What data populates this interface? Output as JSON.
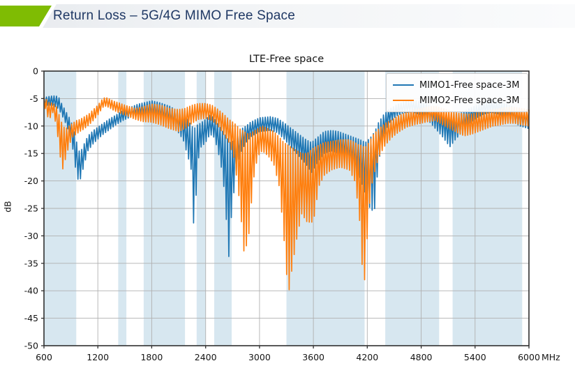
{
  "header": {
    "title": "Return Loss – 5G/4G MIMO Free Space",
    "accent_color": "#7fbc03",
    "title_color": "#1f3864"
  },
  "chart_data": {
    "type": "line",
    "title": "LTE-Free space",
    "ylabel": "dB",
    "x_unit": "MHz",
    "xlim": [
      600,
      6000
    ],
    "ylim": [
      -50,
      0
    ],
    "x_ticks": [
      600,
      1200,
      1800,
      2400,
      3000,
      3600,
      4200,
      4800,
      5400,
      6000
    ],
    "x_tick_labels": [
      "600",
      "1200",
      "1800",
      "2400",
      "3000",
      "3600",
      "4200",
      "4800",
      "5400",
      "6000 MHz"
    ],
    "y_ticks": [
      0,
      -5,
      -10,
      -15,
      -20,
      -25,
      -30,
      -35,
      -40,
      -45,
      -50
    ],
    "y_tick_labels": [
      "0",
      "-5",
      "-10",
      "-15",
      "-20",
      "-25",
      "-30",
      "-35",
      "-40",
      "-45",
      "-50"
    ],
    "grid": true,
    "legend_position": "upper right",
    "colors": {
      "band_fill": "#d7e7f0",
      "grid": "#b0b0b0",
      "spine": "#2f2f2f",
      "text": "#151515"
    },
    "shaded_bands_mhz": [
      [
        600,
        960
      ],
      [
        1427,
        1518
      ],
      [
        1710,
        2170
      ],
      [
        2300,
        2400
      ],
      [
        2496,
        2690
      ],
      [
        3300,
        4170
      ],
      [
        4400,
        5000
      ],
      [
        5150,
        5925
      ]
    ],
    "ripple_half_period_mhz": 14,
    "series": [
      {
        "name": "MIMO1-Free space-3M",
        "color": "#1f77b4",
        "envelope": [
          [
            600,
            -4.8,
            -6.2
          ],
          [
            700,
            -4.5,
            -6.2
          ],
          [
            760,
            -4.6,
            -6.8
          ],
          [
            800,
            -6,
            -8
          ],
          [
            850,
            -7.5,
            -9.8
          ],
          [
            900,
            -9,
            -12
          ],
          [
            935,
            -11,
            -15.5
          ],
          [
            965,
            -13,
            -19.5
          ],
          [
            1000,
            -15,
            -20
          ],
          [
            1040,
            -13.5,
            -17.5
          ],
          [
            1090,
            -11.8,
            -14.5
          ],
          [
            1150,
            -10.8,
            -13.2
          ],
          [
            1200,
            -10.2,
            -12.4
          ],
          [
            1260,
            -9.5,
            -11.5
          ],
          [
            1320,
            -8.8,
            -10.8
          ],
          [
            1400,
            -8,
            -9.8
          ],
          [
            1480,
            -7.2,
            -9
          ],
          [
            1560,
            -6.6,
            -8.4
          ],
          [
            1650,
            -6,
            -8
          ],
          [
            1800,
            -5.4,
            -8.2
          ],
          [
            1900,
            -5.8,
            -8.8
          ],
          [
            2000,
            -6.4,
            -9.6
          ],
          [
            2080,
            -7.2,
            -10.8
          ],
          [
            2150,
            -8,
            -12.5
          ],
          [
            2210,
            -9,
            -16
          ],
          [
            2240,
            -10,
            -18
          ],
          [
            2258,
            -10.2,
            -26
          ],
          [
            2274,
            -10.5,
            -29.3
          ],
          [
            2290,
            -10,
            -24
          ],
          [
            2310,
            -9.8,
            -17
          ],
          [
            2340,
            -9.5,
            -14
          ],
          [
            2400,
            -8.8,
            -13
          ],
          [
            2450,
            -8,
            -11.5
          ],
          [
            2490,
            -8.5,
            -12
          ],
          [
            2530,
            -9.5,
            -14
          ],
          [
            2570,
            -10.5,
            -17
          ],
          [
            2610,
            -11.5,
            -22
          ],
          [
            2630,
            -12,
            -27
          ],
          [
            2652,
            -12.5,
            -35.8
          ],
          [
            2672,
            -13,
            -29
          ],
          [
            2690,
            -13,
            -26
          ],
          [
            2715,
            -12.5,
            -22
          ],
          [
            2750,
            -11.5,
            -17
          ],
          [
            2800,
            -10.5,
            -14.5
          ],
          [
            2850,
            -10,
            -13
          ],
          [
            2900,
            -9.3,
            -12
          ],
          [
            3000,
            -8.5,
            -11
          ],
          [
            3120,
            -8.3,
            -10.8
          ],
          [
            3200,
            -8.6,
            -11.2
          ],
          [
            3280,
            -9.5,
            -12.5
          ],
          [
            3360,
            -10.5,
            -14
          ],
          [
            3440,
            -11.5,
            -15.5
          ],
          [
            3520,
            -12.5,
            -17
          ],
          [
            3580,
            -13,
            -18.5
          ],
          [
            3650,
            -12,
            -16.5
          ],
          [
            3720,
            -11,
            -15
          ],
          [
            3800,
            -10.8,
            -14.5
          ],
          [
            3880,
            -11,
            -15
          ],
          [
            3960,
            -11.5,
            -16
          ],
          [
            4040,
            -12,
            -17.5
          ],
          [
            4120,
            -12.5,
            -19.5
          ],
          [
            4180,
            -13,
            -22.5
          ],
          [
            4240,
            -12,
            -25.5
          ],
          [
            4285,
            -11,
            -25
          ],
          [
            4320,
            -9.5,
            -17
          ],
          [
            4380,
            -8,
            -12
          ],
          [
            4440,
            -7,
            -9.5
          ],
          [
            4520,
            -6.2,
            -8.2
          ],
          [
            4600,
            -5.6,
            -7.6
          ],
          [
            4700,
            -5.3,
            -7.4
          ],
          [
            4800,
            -5.6,
            -8
          ],
          [
            4880,
            -6.2,
            -9
          ],
          [
            4960,
            -7,
            -10.5
          ],
          [
            5040,
            -7.8,
            -12
          ],
          [
            5120,
            -8.5,
            -13.8
          ],
          [
            5180,
            -8.2,
            -12.5
          ],
          [
            5260,
            -7.5,
            -11
          ],
          [
            5340,
            -6.8,
            -9.5
          ],
          [
            5420,
            -6.2,
            -8.5
          ],
          [
            5500,
            -5.6,
            -7.8
          ],
          [
            5580,
            -5.3,
            -7.5
          ],
          [
            5660,
            -5.5,
            -7.8
          ],
          [
            5740,
            -6,
            -8.5
          ],
          [
            5820,
            -6.5,
            -9.2
          ],
          [
            5900,
            -7,
            -10
          ],
          [
            6000,
            -7.3,
            -10.5
          ]
        ]
      },
      {
        "name": "MIMO2-Free space-3M",
        "color": "#ff7f0e",
        "envelope": [
          [
            600,
            -4.8,
            -5.8
          ],
          [
            630,
            -5.2,
            -8
          ],
          [
            660,
            -5.8,
            -8.8
          ],
          [
            700,
            -5.8,
            -7.5
          ],
          [
            740,
            -6.5,
            -10
          ],
          [
            780,
            -8.5,
            -15.5
          ],
          [
            810,
            -10,
            -17.8
          ],
          [
            840,
            -10.5,
            -16
          ],
          [
            880,
            -10,
            -13.5
          ],
          [
            920,
            -9.5,
            -12
          ],
          [
            960,
            -9,
            -11.5
          ],
          [
            1000,
            -8.8,
            -11
          ],
          [
            1050,
            -8.3,
            -10.5
          ],
          [
            1100,
            -7.8,
            -9.8
          ],
          [
            1150,
            -7,
            -9
          ],
          [
            1200,
            -6.2,
            -8
          ],
          [
            1255,
            -5,
            -6.6
          ],
          [
            1285,
            -4.8,
            -6.4
          ],
          [
            1320,
            -5,
            -6.6
          ],
          [
            1380,
            -5.5,
            -7.2
          ],
          [
            1440,
            -5.8,
            -7.6
          ],
          [
            1500,
            -6.2,
            -8
          ],
          [
            1560,
            -6.5,
            -8.4
          ],
          [
            1620,
            -6.8,
            -8.8
          ],
          [
            1700,
            -6.5,
            -9.2
          ],
          [
            1800,
            -6,
            -9.3
          ],
          [
            1900,
            -6.2,
            -9.8
          ],
          [
            2000,
            -6.8,
            -10.5
          ],
          [
            2100,
            -7,
            -11
          ],
          [
            2170,
            -6.8,
            -10.5
          ],
          [
            2250,
            -6.2,
            -9.5
          ],
          [
            2320,
            -5.9,
            -8.8
          ],
          [
            2400,
            -5.9,
            -8.6
          ],
          [
            2470,
            -6.2,
            -9
          ],
          [
            2540,
            -7,
            -10
          ],
          [
            2600,
            -7.8,
            -11.5
          ],
          [
            2660,
            -8.8,
            -13
          ],
          [
            2720,
            -9.5,
            -16
          ],
          [
            2780,
            -10.5,
            -24
          ],
          [
            2830,
            -11,
            -33.5
          ],
          [
            2880,
            -11.5,
            -30
          ],
          [
            2930,
            -11,
            -20
          ],
          [
            2980,
            -10.5,
            -15.5
          ],
          [
            3030,
            -10,
            -14.5
          ],
          [
            3100,
            -10.5,
            -15.5
          ],
          [
            3160,
            -11,
            -17
          ],
          [
            3220,
            -12,
            -21
          ],
          [
            3270,
            -13,
            -30
          ],
          [
            3320,
            -13.5,
            -41
          ],
          [
            3370,
            -14,
            -35
          ],
          [
            3420,
            -14.5,
            -30
          ],
          [
            3470,
            -15,
            -26
          ],
          [
            3530,
            -15,
            -27.5
          ],
          [
            3600,
            -14,
            -27.5
          ],
          [
            3660,
            -13.5,
            -21
          ],
          [
            3720,
            -13,
            -19
          ],
          [
            3800,
            -12.8,
            -18
          ],
          [
            3900,
            -12.5,
            -17.5
          ],
          [
            4000,
            -12.5,
            -18
          ],
          [
            4060,
            -13,
            -20
          ],
          [
            4110,
            -13.5,
            -26
          ],
          [
            4140,
            -13.5,
            -35
          ],
          [
            4170,
            -14,
            -38
          ],
          [
            4200,
            -13.5,
            -30
          ],
          [
            4235,
            -12.5,
            -22
          ],
          [
            4270,
            -11.5,
            -19
          ],
          [
            4330,
            -10.5,
            -15.5
          ],
          [
            4400,
            -9.5,
            -13.5
          ],
          [
            4480,
            -8.8,
            -12
          ],
          [
            4560,
            -8,
            -11
          ],
          [
            4640,
            -7.5,
            -10.2
          ],
          [
            4720,
            -7,
            -9.8
          ],
          [
            4800,
            -6.8,
            -9.5
          ],
          [
            4880,
            -6.5,
            -9.2
          ],
          [
            4960,
            -6.4,
            -9
          ],
          [
            5040,
            -6.8,
            -9.8
          ],
          [
            5120,
            -7.2,
            -10.5
          ],
          [
            5200,
            -7.6,
            -11.2
          ],
          [
            5280,
            -7.8,
            -11.8
          ],
          [
            5360,
            -7.8,
            -11.5
          ],
          [
            5440,
            -7.5,
            -11
          ],
          [
            5520,
            -7.2,
            -10.5
          ],
          [
            5600,
            -7,
            -10
          ],
          [
            5680,
            -6.8,
            -9.8
          ],
          [
            5760,
            -6.6,
            -9.5
          ],
          [
            5840,
            -6.6,
            -9.5
          ],
          [
            5920,
            -6.8,
            -9.8
          ],
          [
            6000,
            -7,
            -10
          ]
        ]
      }
    ]
  }
}
